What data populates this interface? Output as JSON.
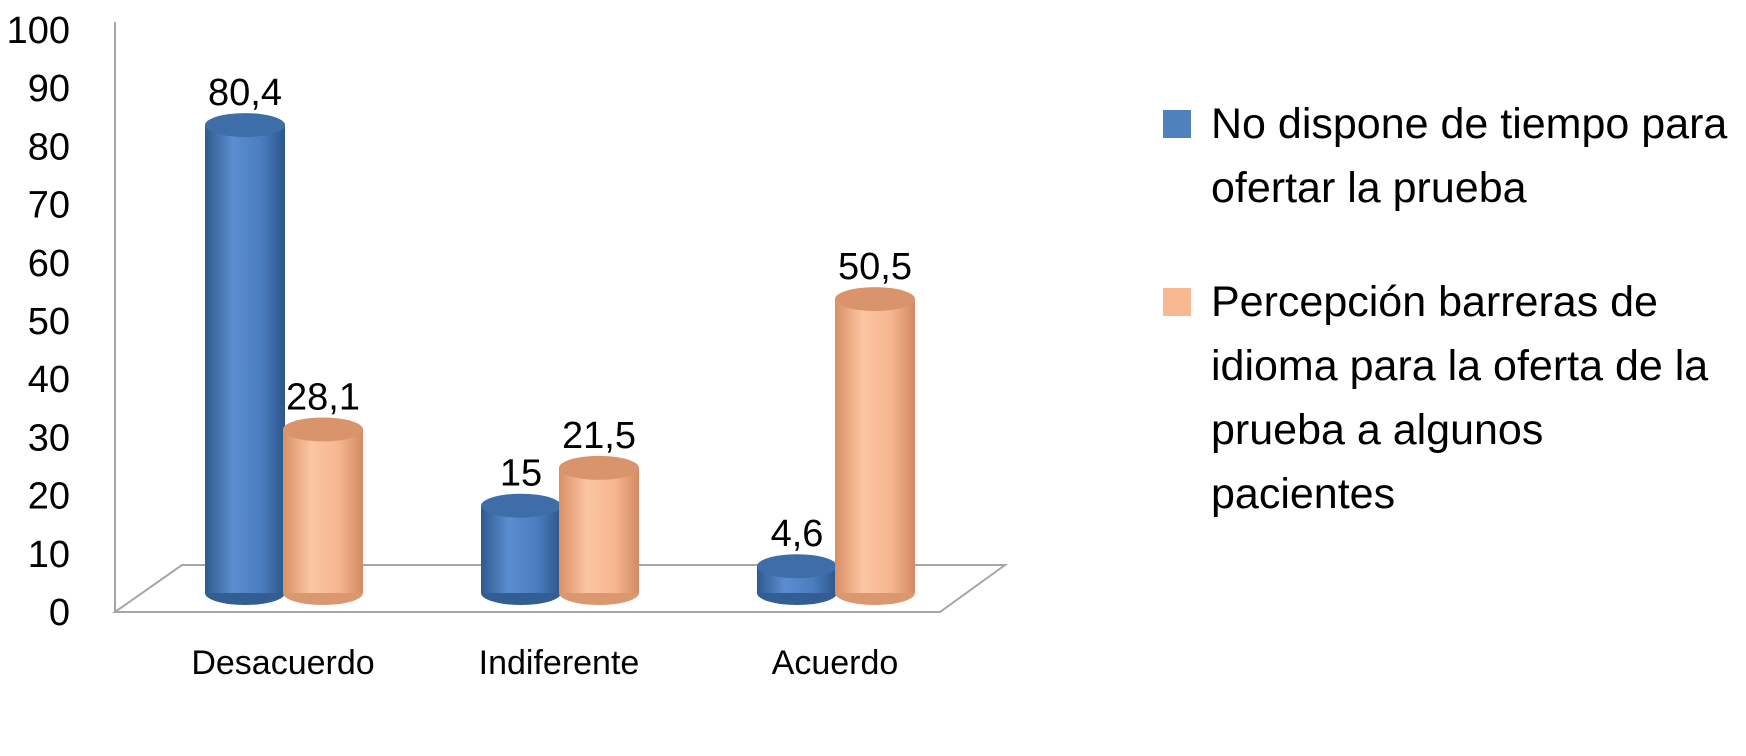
{
  "chart_data": {
    "type": "bar",
    "style": "3d-cylinder",
    "categories": [
      "Desacuerdo",
      "Indiferente",
      "Acuerdo"
    ],
    "series": [
      {
        "name": "No dispone de tiempo para ofertar la prueba",
        "color": "#4F81BD",
        "values": [
          80.4,
          15,
          4.6
        ],
        "labels": [
          "80,4",
          "15",
          "4,6"
        ]
      },
      {
        "name": "Percepción barreras de idioma para la oferta de la prueba a algunos pacientes",
        "color": "#F9B990",
        "values": [
          28.1,
          21.5,
          50.5
        ],
        "labels": [
          "28,1",
          "21,5",
          "50,5"
        ]
      }
    ],
    "yticks": [
      "0",
      "10",
      "20",
      "30",
      "40",
      "50",
      "60",
      "70",
      "80",
      "90",
      "100"
    ],
    "ylim": [
      0,
      100
    ],
    "grid": false,
    "legend_position": "right"
  }
}
